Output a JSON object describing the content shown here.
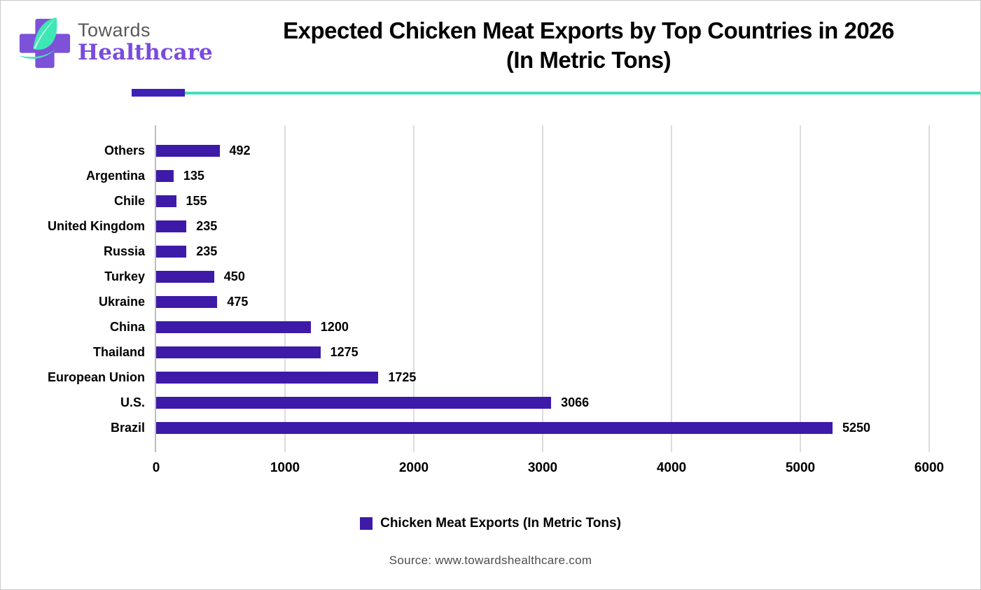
{
  "brand": {
    "name_line1": "Towards",
    "name_line2": "Healthcare",
    "purple": "#7a4bdc",
    "mint": "#3ee8b4",
    "gray": "#58595b"
  },
  "title": {
    "line1": "Expected Chicken Meat Exports by Top Countries in 2026",
    "line2": "(In Metric Tons)"
  },
  "divider": {
    "accent_color": "#3e22b8",
    "line_color": "#3fe0b8"
  },
  "chart_data": {
    "type": "bar",
    "orientation": "horizontal",
    "title": "Expected Chicken Meat Exports by Top Countries in 2026 (In Metric Tons)",
    "categories": [
      "Others",
      "Argentina",
      "Chile",
      "United Kingdom",
      "Russia",
      "Turkey",
      "Ukraine",
      "China",
      "Thailand",
      "European Union",
      "U.S.",
      "Brazil"
    ],
    "values": [
      492,
      135,
      155,
      235,
      235,
      450,
      475,
      1200,
      1275,
      1725,
      3066,
      5250
    ],
    "series_name": "Chicken Meat Exports (In Metric Tons)",
    "xlim": [
      0,
      6000
    ],
    "xticks": [
      0,
      1000,
      2000,
      3000,
      4000,
      5000,
      6000
    ],
    "grid": "vertical",
    "bar_color": "#3d1aa8",
    "data_labels": true,
    "legend_position": "bottom"
  },
  "legend": {
    "label": "Chicken Meat Exports (In Metric Tons)",
    "swatch_color": "#3d1aa8"
  },
  "source": "Source: www.towardshealthcare.com"
}
